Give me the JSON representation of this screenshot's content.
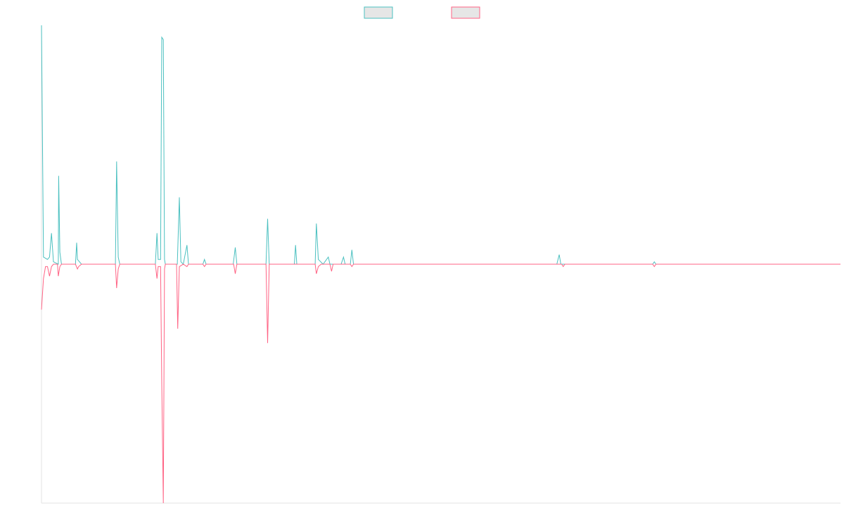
{
  "colors": {
    "series_positive": "#4bc0c0",
    "series_negative": "#ff6384",
    "legend_fill": "#e6e6e6",
    "axis": "#e3e3e3",
    "background": "#ffffff"
  },
  "chart_data": {
    "type": "line",
    "title": "",
    "xlabel": "",
    "ylabel": "",
    "grid": false,
    "legend": "top-center",
    "xlim": [
      0,
      200
    ],
    "ylim": [
      -100,
      100
    ],
    "series": [
      {
        "points": [
          [
            0,
            100
          ],
          [
            0.5,
            3
          ],
          [
            1.5,
            2
          ],
          [
            2,
            3
          ],
          [
            2.5,
            13
          ],
          [
            3,
            1
          ],
          [
            4.2,
            0
          ],
          [
            4.3,
            37
          ],
          [
            4.6,
            5
          ],
          [
            5,
            0
          ],
          [
            6,
            0
          ],
          [
            7,
            0
          ],
          [
            8,
            0
          ],
          [
            8.5,
            0
          ],
          [
            8.8,
            9
          ],
          [
            9,
            2
          ],
          [
            9.5,
            1
          ],
          [
            10,
            0
          ],
          [
            18.5,
            0
          ],
          [
            18.8,
            43
          ],
          [
            19.2,
            3
          ],
          [
            19.6,
            0
          ],
          [
            28.5,
            0
          ],
          [
            28.9,
            13
          ],
          [
            29.2,
            2
          ],
          [
            29.8,
            2
          ],
          [
            30.1,
            95
          ],
          [
            30.5,
            94
          ],
          [
            30.8,
            2
          ],
          [
            31,
            0
          ],
          [
            32,
            0
          ],
          [
            34,
            0
          ],
          [
            34.5,
            28
          ],
          [
            34.9,
            1
          ],
          [
            35.5,
            0
          ],
          [
            36.4,
            8
          ],
          [
            36.8,
            0
          ],
          [
            40.4,
            0
          ],
          [
            40.8,
            2
          ],
          [
            41.2,
            0
          ],
          [
            45,
            0
          ],
          [
            48,
            0
          ],
          [
            48.5,
            7
          ],
          [
            48.9,
            0
          ],
          [
            56.2,
            0
          ],
          [
            56.6,
            19
          ],
          [
            57,
            0
          ],
          [
            63.3,
            0
          ],
          [
            63.6,
            8
          ],
          [
            63.9,
            0
          ],
          [
            68.5,
            0
          ],
          [
            68.8,
            17
          ],
          [
            69.3,
            2
          ],
          [
            70.5,
            0
          ],
          [
            71.8,
            3
          ],
          [
            72.2,
            0
          ],
          [
            75,
            0
          ],
          [
            75.6,
            3
          ],
          [
            76,
            0
          ],
          [
            77.3,
            0
          ],
          [
            77.7,
            6
          ],
          [
            78.1,
            0
          ],
          [
            81.5,
            0
          ],
          [
            82,
            0
          ],
          [
            82.5,
            0
          ],
          [
            129,
            0
          ],
          [
            129.6,
            4
          ],
          [
            130,
            0
          ],
          [
            153,
            0
          ],
          [
            153.4,
            1
          ],
          [
            153.8,
            0
          ],
          [
            200,
            0
          ]
        ]
      },
      {
        "points": [
          [
            0,
            -19
          ],
          [
            0.5,
            -6
          ],
          [
            1,
            -1
          ],
          [
            1.5,
            -1
          ],
          [
            2,
            -5
          ],
          [
            2.5,
            -1
          ],
          [
            3,
            0
          ],
          [
            4,
            0
          ],
          [
            4.2,
            -5
          ],
          [
            4.6,
            -1
          ],
          [
            5,
            0
          ],
          [
            6,
            0
          ],
          [
            7,
            0
          ],
          [
            8,
            0
          ],
          [
            8.5,
            0
          ],
          [
            9,
            -2
          ],
          [
            9.3,
            -1
          ],
          [
            10,
            0
          ],
          [
            18.5,
            0
          ],
          [
            18.8,
            -10
          ],
          [
            19.2,
            -2
          ],
          [
            19.6,
            0
          ],
          [
            28.5,
            0
          ],
          [
            28.9,
            -6
          ],
          [
            29.2,
            -1
          ],
          [
            29.8,
            -1
          ],
          [
            30.1,
            -50
          ],
          [
            30.5,
            -100
          ],
          [
            30.8,
            -2
          ],
          [
            31,
            0
          ],
          [
            33.8,
            0
          ],
          [
            34.1,
            -27
          ],
          [
            34.5,
            -1
          ],
          [
            35.5,
            0
          ],
          [
            36.4,
            -1
          ],
          [
            36.8,
            0
          ],
          [
            40.4,
            0
          ],
          [
            40.8,
            -1
          ],
          [
            41.2,
            0
          ],
          [
            48.1,
            0
          ],
          [
            48.5,
            -4
          ],
          [
            48.9,
            0
          ],
          [
            56.2,
            0
          ],
          [
            56.6,
            -33
          ],
          [
            57,
            0
          ],
          [
            68.5,
            0
          ],
          [
            68.8,
            -4
          ],
          [
            69.3,
            -1
          ],
          [
            70,
            0
          ],
          [
            72.2,
            0
          ],
          [
            72.6,
            -3
          ],
          [
            73,
            0
          ],
          [
            77.3,
            0
          ],
          [
            77.7,
            -1
          ],
          [
            78.1,
            0
          ],
          [
            81.5,
            0
          ],
          [
            82,
            0
          ],
          [
            82.5,
            0
          ],
          [
            130.2,
            0
          ],
          [
            130.6,
            -1
          ],
          [
            131,
            0
          ],
          [
            153,
            0
          ],
          [
            153.4,
            -1
          ],
          [
            153.8,
            0
          ],
          [
            200,
            0
          ]
        ]
      }
    ]
  }
}
